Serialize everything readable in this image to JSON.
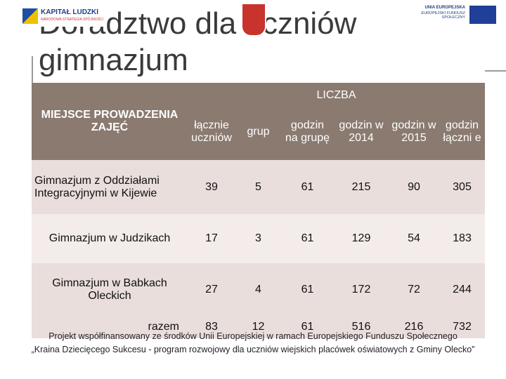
{
  "header": {
    "title": "Doradztwo dla uczniów gimnazjum",
    "logo_left": "KAPITAŁ LUDZKI",
    "logo_left_sub": "NARODOWA STRATEGIA SPÓJNOŚCI",
    "logo_right_1": "UNIA EUROPEJSKA",
    "logo_right_2": "EUROPEJSKI FUNDUSZ SPOŁECZNY"
  },
  "table": {
    "group_header": "LICZBA",
    "columns": [
      "MIEJSCE PROWADZENIA ZAJĘĆ",
      "łącznie uczniów",
      "grup",
      "godzin na grupę",
      "godzin w 2014",
      "godzin w 2015",
      "godzin łączni e"
    ],
    "rows": [
      [
        "Gimnazjum z Oddziałami Integracyjnymi w Kijewie",
        "39",
        "5",
        "61",
        "215",
        "90",
        "305"
      ],
      [
        "Gimnazjum w Judzikach",
        "17",
        "3",
        "61",
        "129",
        "54",
        "183"
      ],
      [
        "Gimnazjum w Babkach Oleckich",
        "27",
        "4",
        "61",
        "172",
        "72",
        "244"
      ],
      [
        "razem",
        "83",
        "12",
        "61",
        "516",
        "216",
        "732"
      ]
    ]
  },
  "footer": {
    "line1": "Projekt współfinansowany ze środków Unii Europejskiej w ramach Europejskiego Funduszu Społecznego",
    "line2": "„Kraina Dziecięcego Sukcesu - program rozwojowy dla uczniów wiejskich placówek oświatowych z Gminy Olecko”"
  }
}
